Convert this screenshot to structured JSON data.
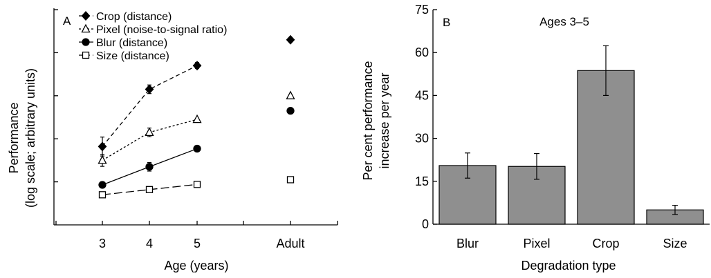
{
  "chart_data": [
    {
      "type": "line",
      "panel_label": "A",
      "xlabel": "Age (years)",
      "ylabel_line1": "Performance",
      "ylabel_line2": "(log scale; arbitrary units)",
      "y_scale": "log (arbitrary units)",
      "ylim": [
        0,
        5
      ],
      "y_ticks": [
        1,
        2,
        3,
        4,
        5
      ],
      "categories": [
        "3",
        "4",
        "5",
        "Adult"
      ],
      "grid": false,
      "legend_position": "top-left",
      "series": [
        {
          "name": "Crop (distance)",
          "marker": "filled-diamond",
          "line": "dashed",
          "x": [
            "3",
            "4",
            "5"
          ],
          "values": [
            1.82,
            3.15,
            3.7
          ],
          "errors": [
            0.22,
            0.1,
            0.07
          ],
          "adult_value": 4.3
        },
        {
          "name": "Pixel (noise-to-signal ratio)",
          "marker": "open-triangle",
          "line": "dotted",
          "x": [
            "3",
            "4",
            "5"
          ],
          "values": [
            1.5,
            2.15,
            2.45
          ],
          "errors": [
            0.14,
            0.1,
            0.0
          ],
          "adult_value": 3.0
        },
        {
          "name": "Blur (distance)",
          "marker": "filled-circle",
          "line": "solid",
          "x": [
            "3",
            "4",
            "5"
          ],
          "values": [
            0.93,
            1.35,
            1.77
          ],
          "errors": [
            0.07,
            0.1,
            0.07
          ],
          "adult_value": 2.65
        },
        {
          "name": "Size (distance)",
          "marker": "open-square",
          "line": "long-dash",
          "x": [
            "3",
            "4",
            "5"
          ],
          "values": [
            0.7,
            0.82,
            0.94
          ],
          "errors": [
            0,
            0,
            0
          ],
          "adult_value": 1.05
        }
      ]
    },
    {
      "type": "bar",
      "panel_label": "B",
      "title": "Ages 3–5",
      "xlabel": "Degradation type",
      "ylabel_line1": "Per cent performance",
      "ylabel_line2": "increase per year",
      "categories": [
        "Blur",
        "Pixel",
        "Crop",
        "Size"
      ],
      "values": [
        20.5,
        20.2,
        53.7,
        5.0
      ],
      "errors": [
        4.4,
        4.5,
        8.7,
        1.6
      ],
      "ylim": [
        0,
        75
      ],
      "y_ticks": [
        0,
        15,
        30,
        45,
        60,
        75
      ],
      "bar_color": "#8f8f8f",
      "grid": false
    }
  ]
}
